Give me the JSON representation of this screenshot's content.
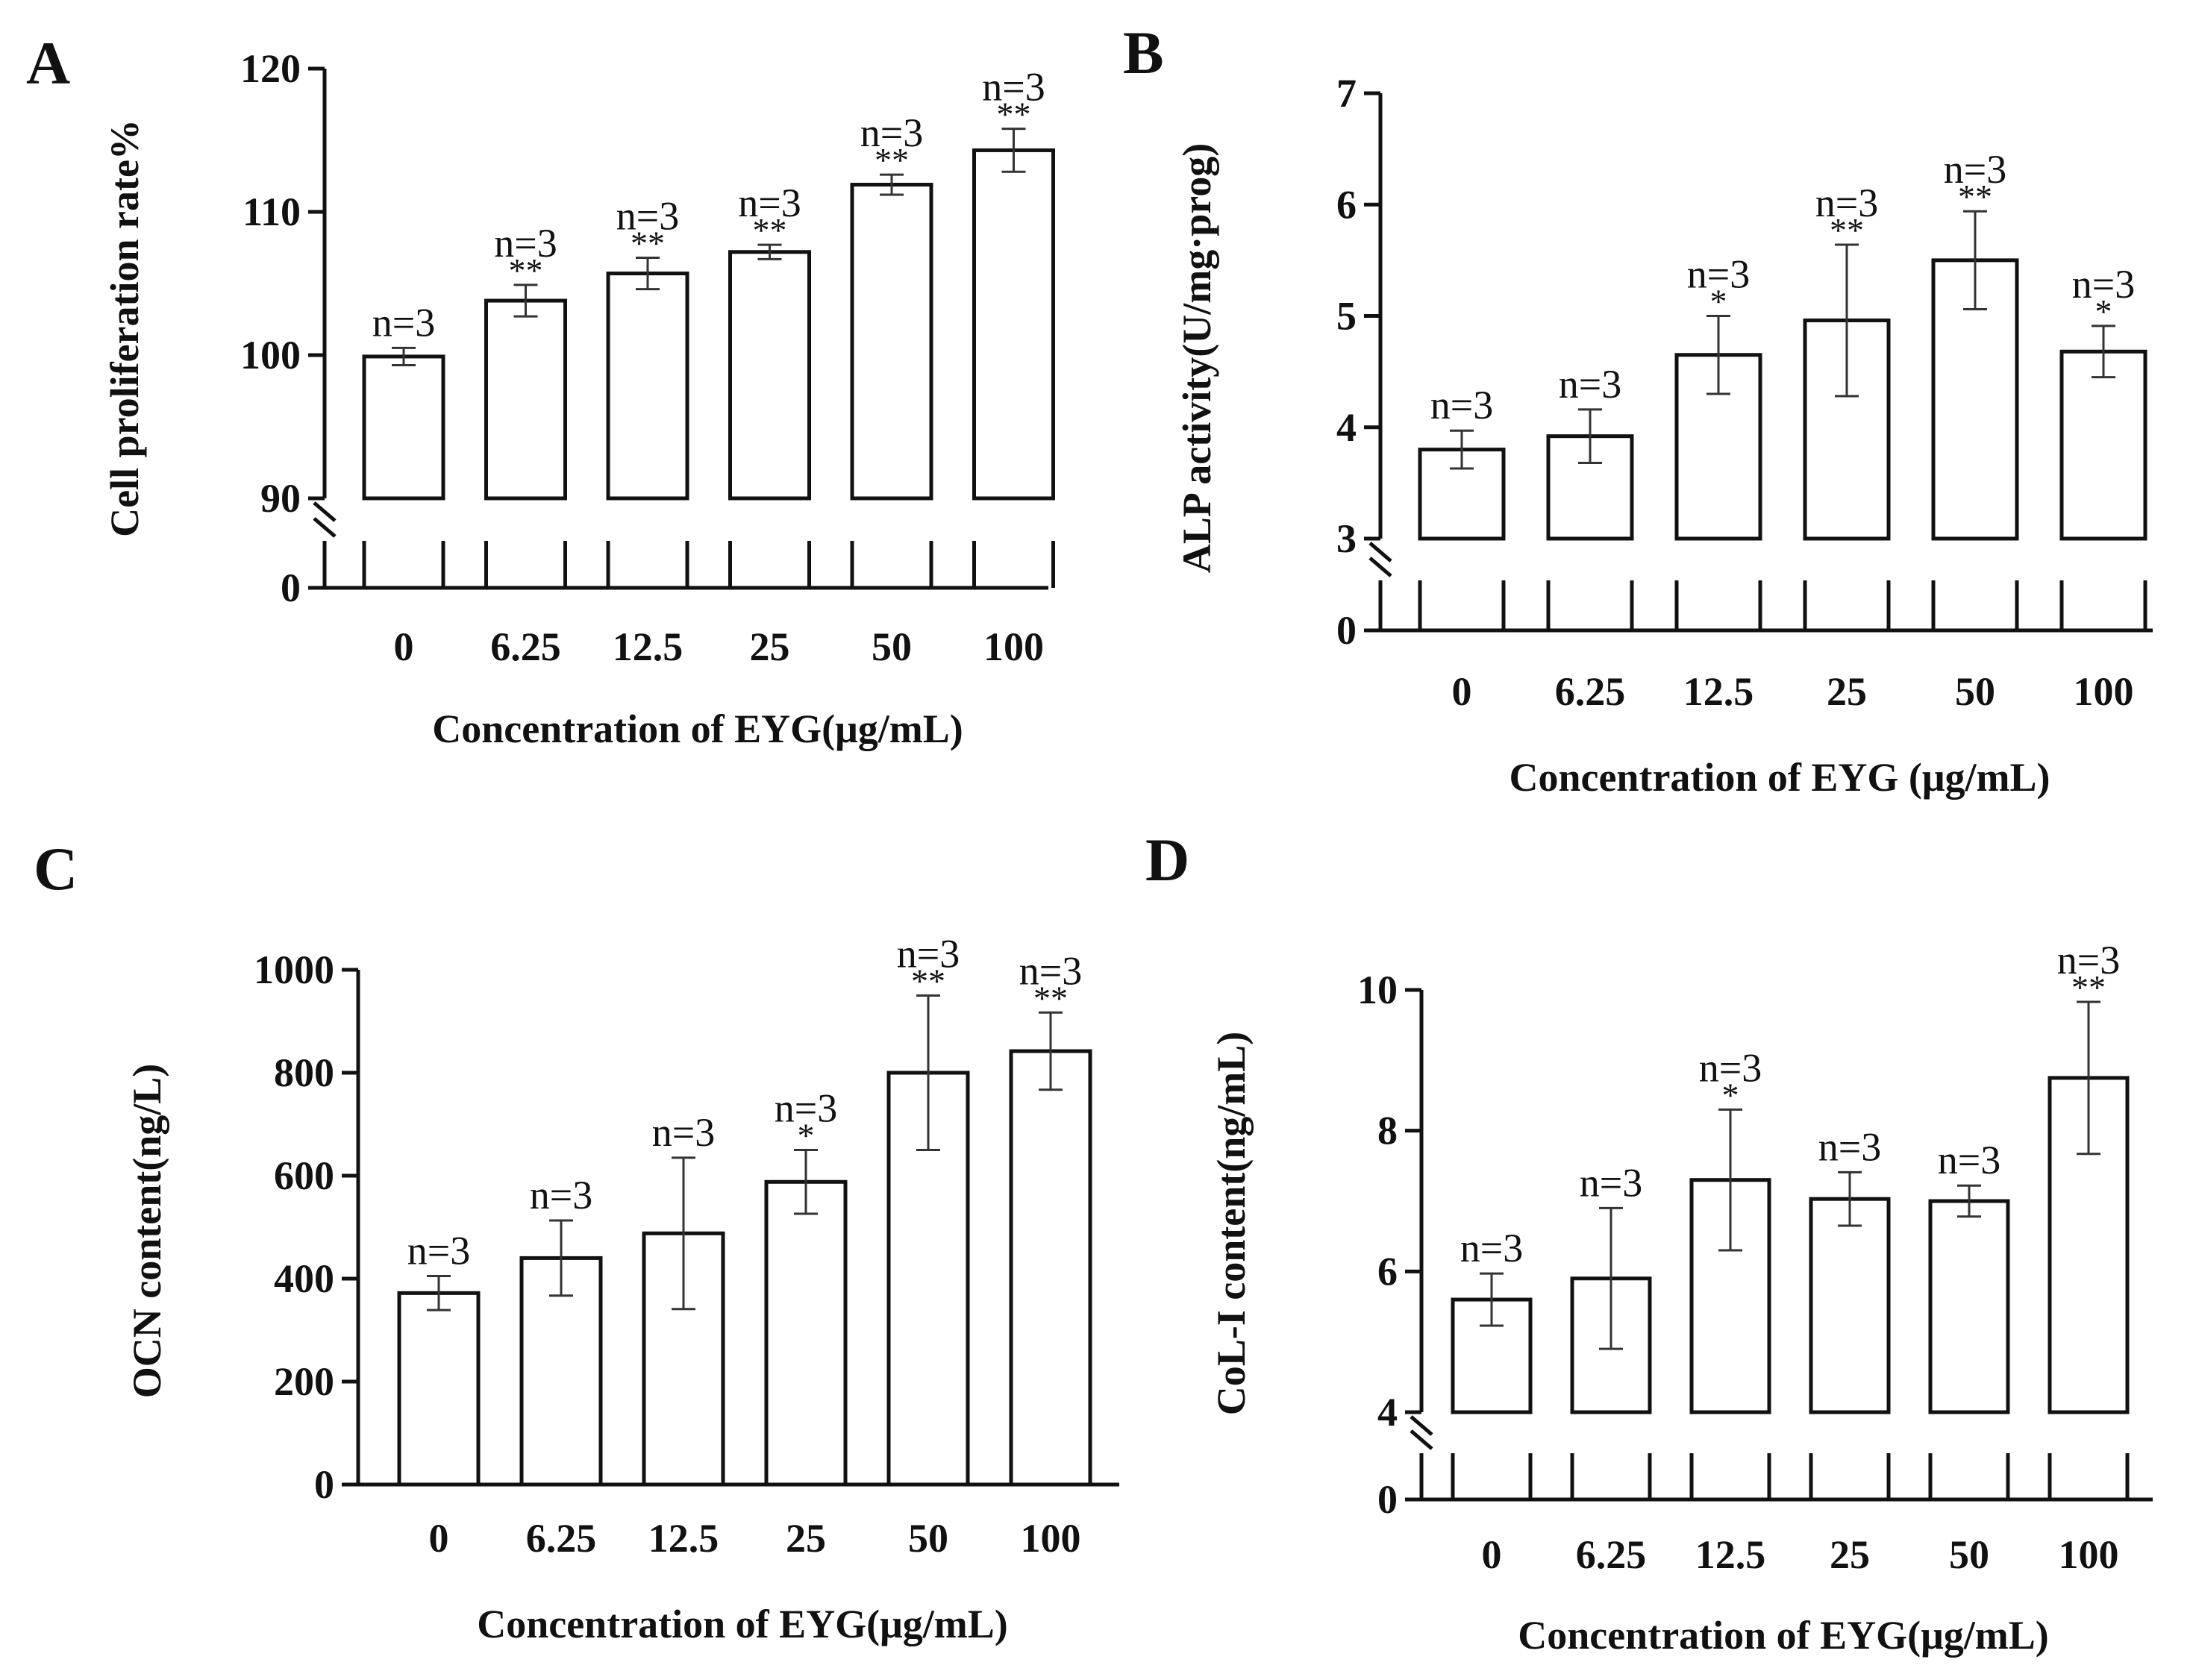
{
  "chart_data": [
    {
      "panel": "A",
      "type": "bar",
      "categories": [
        "0",
        "6.25",
        "12.5",
        "25",
        "50",
        "100"
      ],
      "values": [
        99.9,
        103.8,
        105.7,
        107.2,
        111.9,
        114.3
      ],
      "errors": [
        0.6,
        1.1,
        1.1,
        0.5,
        0.7,
        1.5
      ],
      "n_labels": [
        "n=3",
        "n=3",
        "n=3",
        "n=3",
        "n=3",
        "n=3"
      ],
      "significance": [
        "",
        "**",
        "**",
        "**",
        "**",
        "**"
      ],
      "xlabel": "Concentration of EYG(μg/mL)",
      "ylabel": "Cell proliferation rate%",
      "yticks": [
        "0",
        "90",
        "100",
        "110",
        "120"
      ],
      "ylim": [
        90,
        120
      ],
      "axis_break": true
    },
    {
      "panel": "B",
      "type": "bar",
      "categories": [
        "0",
        "6.25",
        "12.5",
        "25",
        "50",
        "100"
      ],
      "values": [
        3.8,
        3.92,
        4.65,
        4.96,
        5.5,
        4.68
      ],
      "errors": [
        0.17,
        0.24,
        0.35,
        0.68,
        0.44,
        0.23
      ],
      "n_labels": [
        "n=3",
        "n=3",
        "n=3",
        "n=3",
        "n=3",
        "n=3"
      ],
      "significance": [
        "",
        "",
        "*",
        "**",
        "**",
        "*"
      ],
      "xlabel": "Concentration of EYG (μg/mL)",
      "ylabel": "ALP activity(U/mg·prog)",
      "yticks": [
        "0",
        "3",
        "4",
        "5",
        "6",
        "7"
      ],
      "ylim": [
        3,
        7
      ],
      "axis_break": true
    },
    {
      "panel": "C",
      "type": "bar",
      "categories": [
        "0",
        "6.25",
        "12.5",
        "25",
        "50",
        "100"
      ],
      "values": [
        372,
        440,
        488,
        588,
        800,
        842
      ],
      "errors": [
        33,
        73,
        147,
        62,
        150,
        75
      ],
      "n_labels": [
        "n=3",
        "n=3",
        "n=3",
        "n=3",
        "n=3",
        "n=3"
      ],
      "significance": [
        "",
        "",
        "",
        "*",
        "**",
        "**"
      ],
      "xlabel": "Concentration of EYG(μg/mL)",
      "ylabel": "OCN content(ng/L)",
      "yticks": [
        "0",
        "200",
        "400",
        "600",
        "800",
        "1000"
      ],
      "ylim": [
        0,
        1000
      ],
      "axis_break": false
    },
    {
      "panel": "D",
      "type": "bar",
      "categories": [
        "0",
        "6.25",
        "12.5",
        "25",
        "50",
        "100"
      ],
      "values": [
        5.6,
        5.9,
        7.3,
        7.03,
        7.0,
        8.75
      ],
      "errors": [
        0.37,
        1.0,
        1.0,
        0.38,
        0.22,
        1.08
      ],
      "n_labels": [
        "n=3",
        "n=3",
        "n=3",
        "n=3",
        "n=3",
        "n=3"
      ],
      "significance": [
        "",
        "",
        "*",
        "",
        "",
        "**"
      ],
      "xlabel": "Concentration of EYG(μg/mL)",
      "ylabel": "CoL-I content(ng/mL)",
      "yticks": [
        "0",
        "4",
        "6",
        "8",
        "10"
      ],
      "ylim": [
        4,
        10
      ],
      "axis_break": true
    }
  ]
}
